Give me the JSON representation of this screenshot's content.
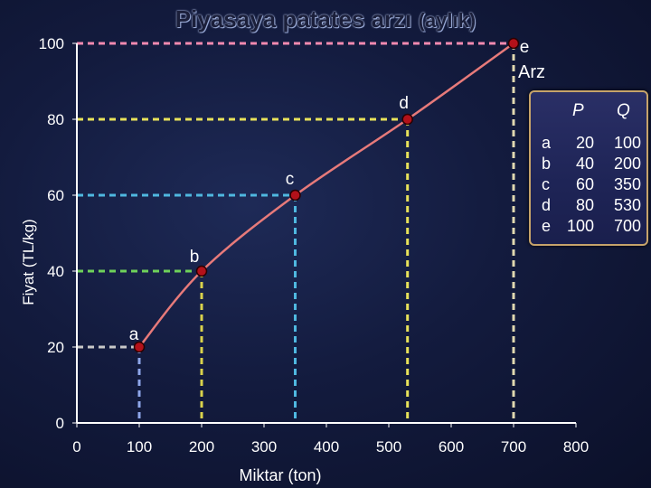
{
  "title_main": "Piyasaya patates arzı",
  "title_sub": "(aylık)",
  "chart_data": {
    "type": "line",
    "title": "Piyasaya patates arzı (aylık)",
    "xlabel": "Miktar (ton)",
    "ylabel": "Fiyat (TL/kg)",
    "xlim": [
      0,
      800
    ],
    "ylim": [
      0,
      100
    ],
    "x_ticks": [
      0,
      100,
      200,
      300,
      400,
      500,
      600,
      700,
      800
    ],
    "y_ticks": [
      0,
      20,
      40,
      60,
      80,
      100
    ],
    "curve_label": "Arz",
    "points": [
      {
        "label": "a",
        "x": 100,
        "y": 20
      },
      {
        "label": "b",
        "x": 200,
        "y": 40
      },
      {
        "label": "c",
        "x": 350,
        "y": 60
      },
      {
        "label": "d",
        "x": 530,
        "y": 80
      },
      {
        "label": "e",
        "x": 700,
        "y": 100
      }
    ],
    "grid": false
  },
  "table": {
    "header_p": "P",
    "header_q": "Q",
    "rows": [
      {
        "label": "a",
        "p": "20",
        "q": "100"
      },
      {
        "label": "b",
        "p": "40",
        "q": "200"
      },
      {
        "label": "c",
        "p": "60",
        "q": "350"
      },
      {
        "label": "d",
        "p": "80",
        "q": "530"
      },
      {
        "label": "e",
        "p": "100",
        "q": "700"
      }
    ]
  },
  "colors": {
    "curve": "#e77a7a",
    "point_fill": "#b3111a",
    "axis": "#ffffff",
    "guide_x20": "#c8c8c8",
    "guide_x40": "#6fd15a",
    "guide_x60": "#4fb8e0",
    "guide_x80": "#e8e25a",
    "guide_x100": "#f28ab0",
    "guide_v100": "#8ea6ea",
    "guide_v200": "#d9d24c",
    "guide_v350": "#4fb8e0",
    "guide_v530": "#e8e25a",
    "guide_v700": "#e0d8b0",
    "table_border": "#c6a36a"
  }
}
